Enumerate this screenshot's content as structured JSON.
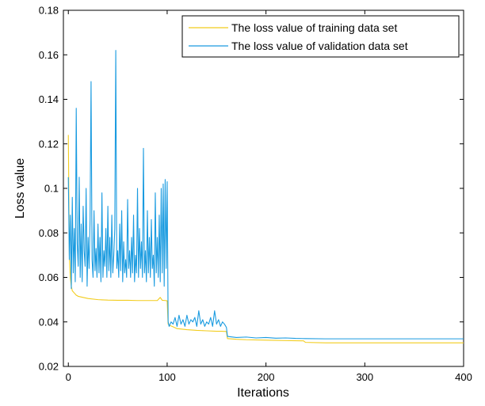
{
  "chart_data": {
    "type": "line",
    "title": "",
    "xlabel": "Iterations",
    "ylabel": "Loss value",
    "xlim": [
      -5,
      400
    ],
    "ylim": [
      0.02,
      0.18
    ],
    "x_ticks": [
      "0",
      "100",
      "200",
      "300",
      "400"
    ],
    "y_ticks": [
      "0.02",
      "0.04",
      "0.06",
      "0.08",
      "0.1",
      "0.12",
      "0.14",
      "0.16",
      "0.18"
    ],
    "legend_position": "top-right",
    "grid": false,
    "series": [
      {
        "name": "The loss value of training data set",
        "color": "#f2cc1c",
        "x": [
          0,
          1,
          2,
          3,
          4,
          6,
          8,
          10,
          15,
          20,
          30,
          40,
          50,
          60,
          70,
          80,
          90,
          93,
          95,
          98,
          100,
          101,
          102,
          105,
          110,
          120,
          130,
          140,
          150,
          155,
          160,
          161,
          170,
          180,
          200,
          220,
          238,
          240,
          260,
          300,
          350,
          400
        ],
        "values": [
          0.124,
          0.07,
          0.06,
          0.056,
          0.054,
          0.053,
          0.052,
          0.0515,
          0.051,
          0.0505,
          0.05,
          0.0498,
          0.0497,
          0.0497,
          0.0496,
          0.0496,
          0.0496,
          0.051,
          0.0497,
          0.0496,
          0.0495,
          0.039,
          0.0385,
          0.038,
          0.037,
          0.0365,
          0.0362,
          0.036,
          0.0358,
          0.0358,
          0.0357,
          0.0325,
          0.0322,
          0.032,
          0.0318,
          0.0316,
          0.0315,
          0.0308,
          0.0306,
          0.0306,
          0.0306,
          0.0306
        ]
      },
      {
        "name": "The loss value of validation data set",
        "color": "#1a9be0",
        "x": [
          0,
          1,
          2,
          3,
          4,
          5,
          6,
          7,
          8,
          9,
          10,
          11,
          12,
          13,
          14,
          15,
          16,
          17,
          18,
          19,
          20,
          21,
          22,
          23,
          24,
          25,
          26,
          27,
          28,
          29,
          30,
          31,
          32,
          33,
          34,
          35,
          36,
          37,
          38,
          39,
          40,
          41,
          42,
          43,
          44,
          45,
          46,
          47,
          48,
          49,
          50,
          51,
          52,
          53,
          54,
          55,
          56,
          57,
          58,
          59,
          60,
          61,
          62,
          63,
          64,
          65,
          66,
          67,
          68,
          69,
          70,
          71,
          72,
          73,
          74,
          75,
          76,
          77,
          78,
          79,
          80,
          81,
          82,
          83,
          84,
          85,
          86,
          87,
          88,
          89,
          90,
          91,
          92,
          93,
          94,
          95,
          96,
          97,
          98,
          99,
          100,
          101,
          102,
          104,
          106,
          108,
          110,
          112,
          114,
          116,
          118,
          120,
          122,
          124,
          126,
          128,
          130,
          132,
          134,
          136,
          138,
          140,
          142,
          144,
          146,
          148,
          150,
          152,
          154,
          156,
          158,
          160,
          161,
          170,
          180,
          190,
          200,
          210,
          220,
          230,
          240,
          260,
          300,
          350,
          400
        ],
        "values": [
          0.105,
          0.068,
          0.088,
          0.055,
          0.096,
          0.062,
          0.082,
          0.058,
          0.136,
          0.075,
          0.065,
          0.105,
          0.06,
          0.084,
          0.058,
          0.092,
          0.072,
          0.065,
          0.1,
          0.056,
          0.078,
          0.064,
          0.086,
          0.148,
          0.068,
          0.06,
          0.09,
          0.063,
          0.073,
          0.06,
          0.084,
          0.062,
          0.078,
          0.058,
          0.098,
          0.06,
          0.072,
          0.065,
          0.082,
          0.06,
          0.092,
          0.063,
          0.078,
          0.06,
          0.088,
          0.062,
          0.07,
          0.082,
          0.162,
          0.064,
          0.072,
          0.06,
          0.084,
          0.063,
          0.09,
          0.058,
          0.076,
          0.062,
          0.068,
          0.06,
          0.095,
          0.064,
          0.072,
          0.06,
          0.078,
          0.062,
          0.088,
          0.058,
          0.07,
          0.062,
          0.1,
          0.06,
          0.082,
          0.064,
          0.076,
          0.06,
          0.118,
          0.062,
          0.072,
          0.058,
          0.09,
          0.062,
          0.078,
          0.06,
          0.086,
          0.064,
          0.07,
          0.056,
          0.098,
          0.062,
          0.078,
          0.06,
          0.088,
          0.058,
          0.1,
          0.062,
          0.102,
          0.056,
          0.104,
          0.064,
          0.103,
          0.04,
          0.038,
          0.04,
          0.039,
          0.042,
          0.038,
          0.043,
          0.039,
          0.041,
          0.038,
          0.043,
          0.039,
          0.041,
          0.04,
          0.042,
          0.038,
          0.045,
          0.039,
          0.041,
          0.038,
          0.04,
          0.039,
          0.042,
          0.038,
          0.045,
          0.039,
          0.041,
          0.038,
          0.04,
          0.039,
          0.0375,
          0.0335,
          0.033,
          0.0332,
          0.0328,
          0.033,
          0.0327,
          0.0328,
          0.0326,
          0.0325,
          0.0324,
          0.0324,
          0.0324,
          0.0324
        ]
      }
    ]
  }
}
